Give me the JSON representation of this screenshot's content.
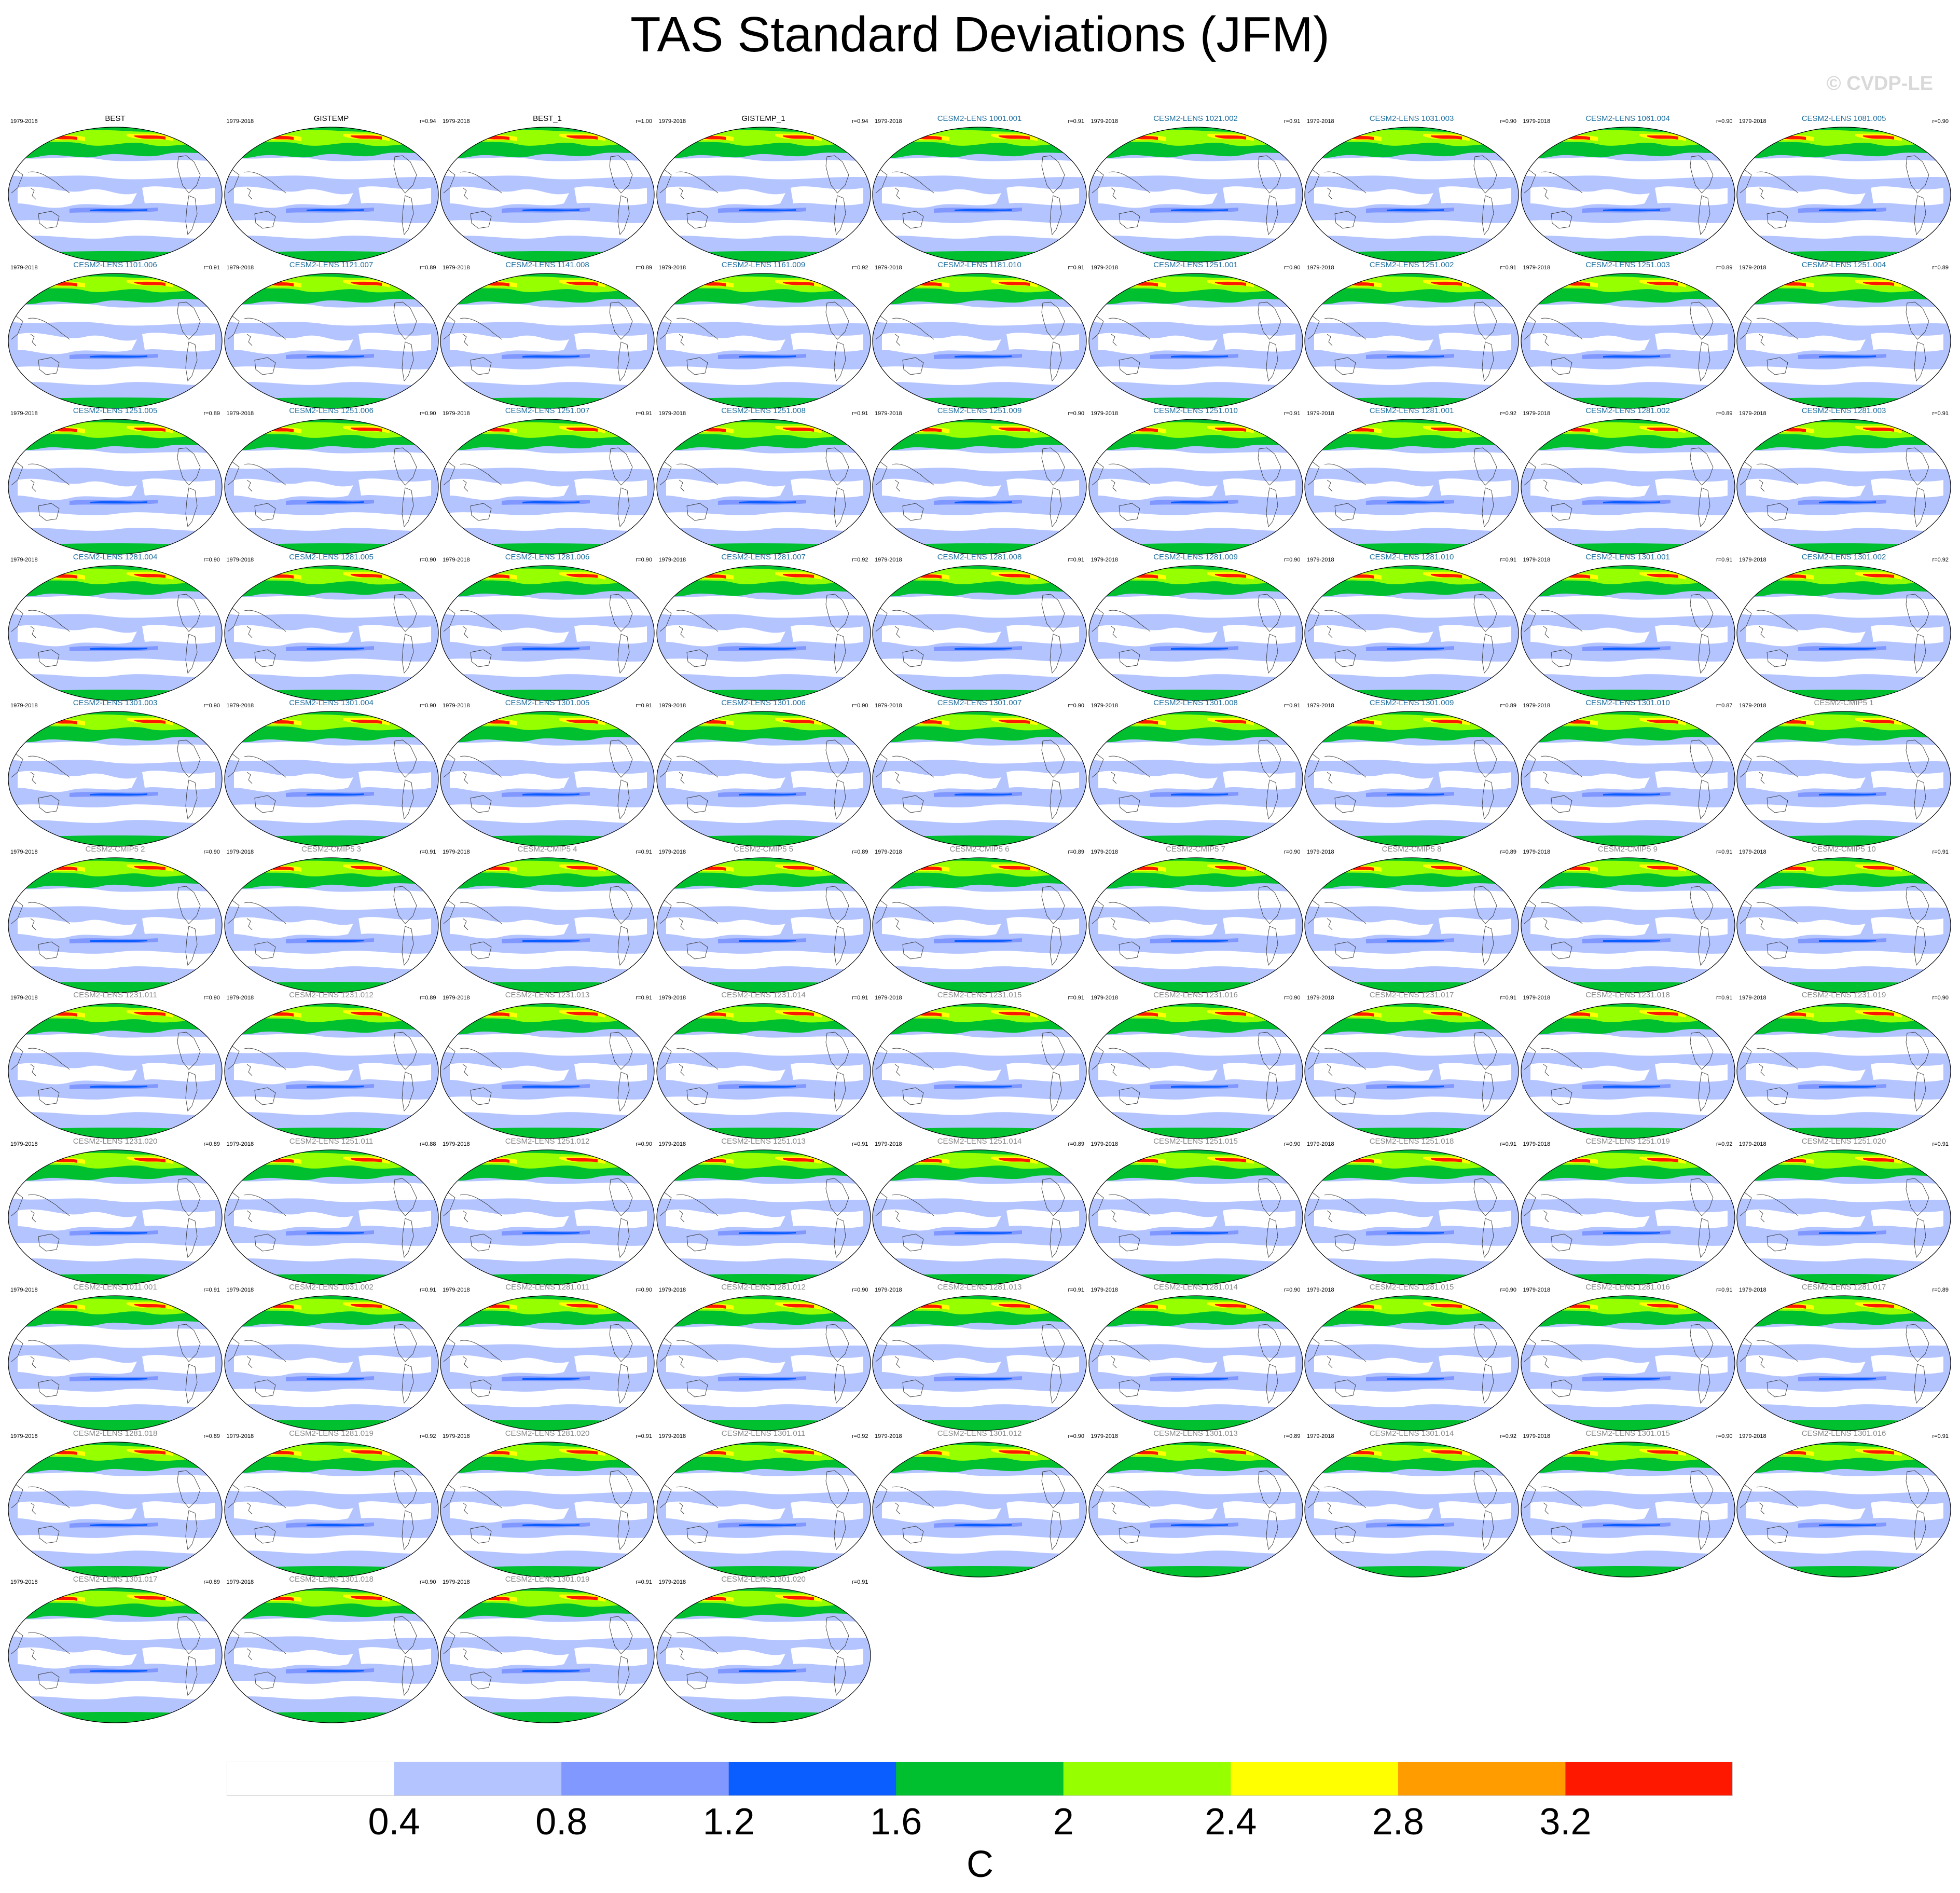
{
  "title": "TAS Standard Deviations (JFM)",
  "credit": "© CVDP-LE",
  "period": "1979-2018",
  "panels": [
    {
      "name": "BEST",
      "r": "",
      "style": "obs"
    },
    {
      "name": "GISTEMP",
      "r": "r=0.94",
      "style": "obs"
    },
    {
      "name": "BEST_1",
      "r": "r=1.00",
      "style": "obs"
    },
    {
      "name": "GISTEMP_1",
      "r": "r=0.94",
      "style": "obs"
    },
    {
      "name": "CESM2-LENS 1001.001",
      "r": "r=0.91",
      "style": "lens"
    },
    {
      "name": "CESM2-LENS 1021.002",
      "r": "r=0.91",
      "style": "lens"
    },
    {
      "name": "CESM2-LENS 1031.003",
      "r": "r=0.90",
      "style": "lens"
    },
    {
      "name": "CESM2-LENS 1061.004",
      "r": "r=0.90",
      "style": "lens"
    },
    {
      "name": "CESM2-LENS 1081.005",
      "r": "r=0.90",
      "style": "lens"
    },
    {
      "name": "CESM2-LENS 1101.006",
      "r": "r=0.91",
      "style": "lens"
    },
    {
      "name": "CESM2-LENS 1121.007",
      "r": "r=0.89",
      "style": "lens"
    },
    {
      "name": "CESM2-LENS 1141.008",
      "r": "r=0.89",
      "style": "lens"
    },
    {
      "name": "CESM2-LENS 1161.009",
      "r": "r=0.92",
      "style": "lens"
    },
    {
      "name": "CESM2-LENS 1181.010",
      "r": "r=0.91",
      "style": "lens"
    },
    {
      "name": "CESM2-LENS 1251.001",
      "r": "r=0.90",
      "style": "lens"
    },
    {
      "name": "CESM2-LENS 1251.002",
      "r": "r=0.91",
      "style": "lens"
    },
    {
      "name": "CESM2-LENS 1251.003",
      "r": "r=0.89",
      "style": "lens"
    },
    {
      "name": "CESM2-LENS 1251.004",
      "r": "r=0.89",
      "style": "lens"
    },
    {
      "name": "CESM2-LENS 1251.005",
      "r": "r=0.89",
      "style": "lens"
    },
    {
      "name": "CESM2-LENS 1251.006",
      "r": "r=0.90",
      "style": "lens"
    },
    {
      "name": "CESM2-LENS 1251.007",
      "r": "r=0.91",
      "style": "lens"
    },
    {
      "name": "CESM2-LENS 1251.008",
      "r": "r=0.91",
      "style": "lens"
    },
    {
      "name": "CESM2-LENS 1251.009",
      "r": "r=0.90",
      "style": "lens"
    },
    {
      "name": "CESM2-LENS 1251.010",
      "r": "r=0.91",
      "style": "lens"
    },
    {
      "name": "CESM2-LENS 1281.001",
      "r": "r=0.92",
      "style": "lens"
    },
    {
      "name": "CESM2-LENS 1281.002",
      "r": "r=0.89",
      "style": "lens"
    },
    {
      "name": "CESM2-LENS 1281.003",
      "r": "r=0.91",
      "style": "lens"
    },
    {
      "name": "CESM2-LENS 1281.004",
      "r": "r=0.90",
      "style": "lens"
    },
    {
      "name": "CESM2-LENS 1281.005",
      "r": "r=0.90",
      "style": "lens"
    },
    {
      "name": "CESM2-LENS 1281.006",
      "r": "r=0.90",
      "style": "lens"
    },
    {
      "name": "CESM2-LENS 1281.007",
      "r": "r=0.92",
      "style": "lens"
    },
    {
      "name": "CESM2-LENS 1281.008",
      "r": "r=0.91",
      "style": "lens"
    },
    {
      "name": "CESM2-LENS 1281.009",
      "r": "r=0.90",
      "style": "lens"
    },
    {
      "name": "CESM2-LENS 1281.010",
      "r": "r=0.91",
      "style": "lens"
    },
    {
      "name": "CESM2-LENS 1301.001",
      "r": "r=0.91",
      "style": "lens"
    },
    {
      "name": "CESM2-LENS 1301.002",
      "r": "r=0.92",
      "style": "lens"
    },
    {
      "name": "CESM2-LENS 1301.003",
      "r": "r=0.90",
      "style": "lens"
    },
    {
      "name": "CESM2-LENS 1301.004",
      "r": "r=0.90",
      "style": "lens"
    },
    {
      "name": "CESM2-LENS 1301.005",
      "r": "r=0.91",
      "style": "lens"
    },
    {
      "name": "CESM2-LENS 1301.006",
      "r": "r=0.90",
      "style": "lens"
    },
    {
      "name": "CESM2-LENS 1301.007",
      "r": "r=0.90",
      "style": "lens"
    },
    {
      "name": "CESM2-LENS 1301.008",
      "r": "r=0.91",
      "style": "lens"
    },
    {
      "name": "CESM2-LENS 1301.009",
      "r": "r=0.89",
      "style": "lens"
    },
    {
      "name": "CESM2-LENS 1301.010",
      "r": "r=0.87",
      "style": "lens"
    },
    {
      "name": "CESM2-CMIP5 1",
      "r": "",
      "style": "gray"
    },
    {
      "name": "CESM2-CMIP5 2",
      "r": "r=0.90",
      "style": "gray"
    },
    {
      "name": "CESM2-CMIP5 3",
      "r": "r=0.91",
      "style": "gray"
    },
    {
      "name": "CESM2-CMIP5 4",
      "r": "r=0.91",
      "style": "gray"
    },
    {
      "name": "CESM2-CMIP5 5",
      "r": "r=0.89",
      "style": "gray"
    },
    {
      "name": "CESM2-CMIP5 6",
      "r": "r=0.89",
      "style": "gray"
    },
    {
      "name": "CESM2-CMIP5 7",
      "r": "r=0.90",
      "style": "gray"
    },
    {
      "name": "CESM2-CMIP5 8",
      "r": "r=0.89",
      "style": "gray"
    },
    {
      "name": "CESM2-CMIP5 9",
      "r": "r=0.91",
      "style": "gray"
    },
    {
      "name": "CESM2-CMIP5 10",
      "r": "r=0.91",
      "style": "gray"
    },
    {
      "name": "CESM2-LENS 1231.011",
      "r": "r=0.90",
      "style": "gray"
    },
    {
      "name": "CESM2-LENS 1231.012",
      "r": "r=0.89",
      "style": "gray"
    },
    {
      "name": "CESM2-LENS 1231.013",
      "r": "r=0.91",
      "style": "gray"
    },
    {
      "name": "CESM2-LENS 1231.014",
      "r": "r=0.91",
      "style": "gray"
    },
    {
      "name": "CESM2-LENS 1231.015",
      "r": "r=0.91",
      "style": "gray"
    },
    {
      "name": "CESM2-LENS 1231.016",
      "r": "r=0.90",
      "style": "gray"
    },
    {
      "name": "CESM2-LENS 1231.017",
      "r": "r=0.91",
      "style": "gray"
    },
    {
      "name": "CESM2-LENS 1231.018",
      "r": "r=0.91",
      "style": "gray"
    },
    {
      "name": "CESM2-LENS 1231.019",
      "r": "r=0.90",
      "style": "gray"
    },
    {
      "name": "CESM2-LENS 1231.020",
      "r": "r=0.89",
      "style": "gray"
    },
    {
      "name": "CESM2-LENS 1251.011",
      "r": "r=0.88",
      "style": "gray"
    },
    {
      "name": "CESM2-LENS 1251.012",
      "r": "r=0.90",
      "style": "gray"
    },
    {
      "name": "CESM2-LENS 1251.013",
      "r": "r=0.91",
      "style": "gray"
    },
    {
      "name": "CESM2-LENS 1251.014",
      "r": "r=0.89",
      "style": "gray"
    },
    {
      "name": "CESM2-LENS 1251.015",
      "r": "r=0.90",
      "style": "gray"
    },
    {
      "name": "CESM2-LENS 1251.018",
      "r": "r=0.91",
      "style": "gray"
    },
    {
      "name": "CESM2-LENS 1251.019",
      "r": "r=0.92",
      "style": "gray"
    },
    {
      "name": "CESM2-LENS 1251.020",
      "r": "r=0.91",
      "style": "gray"
    },
    {
      "name": "CESM2-LENS 1011.001",
      "r": "r=0.91",
      "style": "gray"
    },
    {
      "name": "CESM2-LENS 1031.002",
      "r": "r=0.91",
      "style": "gray"
    },
    {
      "name": "CESM2-LENS 1281.011",
      "r": "r=0.90",
      "style": "gray"
    },
    {
      "name": "CESM2-LENS 1281.012",
      "r": "r=0.90",
      "style": "gray"
    },
    {
      "name": "CESM2-LENS 1281.013",
      "r": "r=0.91",
      "style": "gray"
    },
    {
      "name": "CESM2-LENS 1281.014",
      "r": "r=0.90",
      "style": "gray"
    },
    {
      "name": "CESM2-LENS 1281.015",
      "r": "r=0.90",
      "style": "gray"
    },
    {
      "name": "CESM2-LENS 1281.016",
      "r": "r=0.91",
      "style": "gray"
    },
    {
      "name": "CESM2-LENS 1281.017",
      "r": "r=0.89",
      "style": "gray"
    },
    {
      "name": "CESM2-LENS 1281.018",
      "r": "r=0.89",
      "style": "gray"
    },
    {
      "name": "CESM2-LENS 1281.019",
      "r": "r=0.92",
      "style": "gray"
    },
    {
      "name": "CESM2-LENS 1281.020",
      "r": "r=0.91",
      "style": "gray"
    },
    {
      "name": "CESM2-LENS 1301.011",
      "r": "r=0.92",
      "style": "gray"
    },
    {
      "name": "CESM2-LENS 1301.012",
      "r": "r=0.90",
      "style": "gray"
    },
    {
      "name": "CESM2-LENS 1301.013",
      "r": "r=0.89",
      "style": "gray"
    },
    {
      "name": "CESM2-LENS 1301.014",
      "r": "r=0.92",
      "style": "gray"
    },
    {
      "name": "CESM2-LENS 1301.015",
      "r": "r=0.90",
      "style": "gray"
    },
    {
      "name": "CESM2-LENS 1301.016",
      "r": "r=0.91",
      "style": "gray"
    },
    {
      "name": "CESM2-LENS 1301.017",
      "r": "r=0.89",
      "style": "gray"
    },
    {
      "name": "CESM2-LENS 1301.018",
      "r": "r=0.90",
      "style": "gray"
    },
    {
      "name": "CESM2-LENS 1301.019",
      "r": "r=0.91",
      "style": "gray"
    },
    {
      "name": "CESM2-LENS 1301.020",
      "r": "r=0.91",
      "style": "gray"
    }
  ],
  "colorbar": {
    "colors": [
      "#ffffff",
      "#b4c4ff",
      "#8098ff",
      "#0a5dff",
      "#00c02f",
      "#96ff00",
      "#ffff00",
      "#ff9c00",
      "#ff1800"
    ],
    "labels": [
      "0.4",
      "0.8",
      "1.2",
      "1.6",
      "2",
      "2.4",
      "2.8",
      "3.2"
    ],
    "units": "C"
  }
}
